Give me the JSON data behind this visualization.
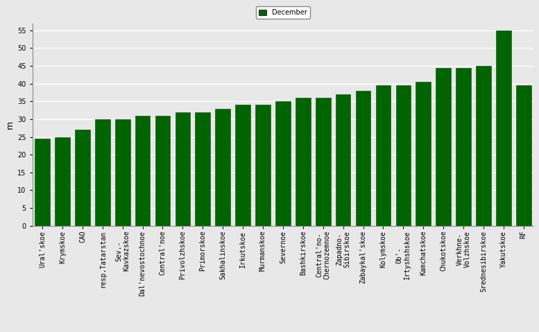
{
  "categories": [
    "Ural'skoe",
    "Krymskoe",
    "CAO",
    "resp.Tatarstan",
    "Sev.-\nKavkazskoe",
    "Dal'nevostochnoe",
    "Central'noe",
    "Privolzhskoe",
    "Primorskoe",
    "Sakhalinskoe",
    "Irkutskoe",
    "Murmanskoe",
    "Severnoe",
    "Bashkirskoe",
    "Central'no-\nChernozemnoe",
    "Zapadno-\nSibirskoe",
    "Zabaykal'skoe",
    "Kolymskoe",
    "Ob'-\nIrtyshshskoe",
    "Kamchatskoe",
    "Chukotskoe",
    "Verkhne-\nVolzhskoe",
    "Srednesibirskoe",
    "Yakutskoe",
    "RF"
  ],
  "values": [
    24.5,
    25.0,
    27.0,
    30.0,
    30.0,
    31.0,
    31.0,
    32.0,
    32.0,
    33.0,
    34.0,
    34.0,
    35.0,
    36.0,
    36.0,
    37.0,
    38.0,
    39.5,
    39.5,
    40.5,
    44.5,
    44.5,
    45.0,
    55.0,
    39.5
  ],
  "bar_color": "#006400",
  "bar_edge_color": "#1a5c1a",
  "ylabel": "m",
  "ylim": [
    0,
    57
  ],
  "yticks": [
    0,
    5,
    10,
    15,
    20,
    25,
    30,
    35,
    40,
    45,
    50,
    55
  ],
  "legend_label": "December",
  "legend_patch_color": "#006400",
  "background_color": "#e8e8e8",
  "grid_color": "#ffffff",
  "tick_fontsize": 7,
  "ylabel_fontsize": 9
}
